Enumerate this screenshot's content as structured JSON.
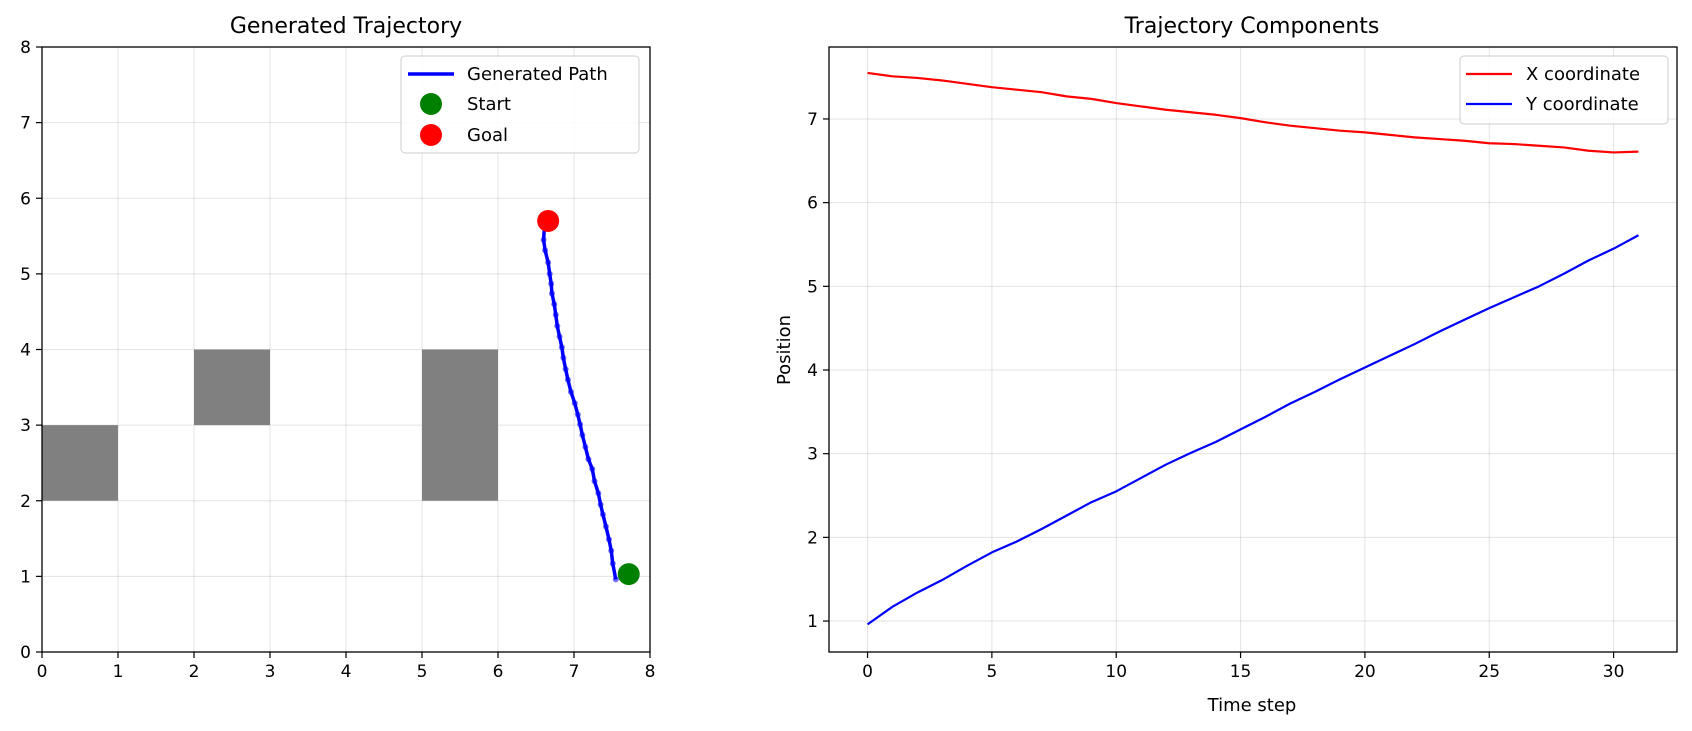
{
  "chart_data": [
    {
      "type": "scatter",
      "title": "Generated Trajectory",
      "xlabel": "",
      "ylabel": "",
      "xlim": [
        0,
        8
      ],
      "ylim": [
        0,
        8
      ],
      "xticks": [
        0,
        1,
        2,
        3,
        4,
        5,
        6,
        7,
        8
      ],
      "yticks": [
        0,
        1,
        2,
        3,
        4,
        5,
        6,
        7,
        8
      ],
      "grid": true,
      "legend_position": "top-right",
      "obstacles": [
        {
          "x": 0,
          "y": 2,
          "w": 1,
          "h": 1
        },
        {
          "x": 2,
          "y": 3,
          "w": 1,
          "h": 1
        },
        {
          "x": 5,
          "y": 2,
          "w": 1,
          "h": 2
        }
      ],
      "series": [
        {
          "name": "Generated Path",
          "color": "#0000ff",
          "points": [
            [
              7.55,
              0.96
            ],
            [
              7.51,
              1.17
            ],
            [
              7.49,
              1.34
            ],
            [
              7.46,
              1.49
            ],
            [
              7.42,
              1.66
            ],
            [
              7.38,
              1.82
            ],
            [
              7.35,
              1.95
            ],
            [
              7.32,
              2.1
            ],
            [
              7.27,
              2.26
            ],
            [
              7.24,
              2.42
            ],
            [
              7.19,
              2.55
            ],
            [
              7.15,
              2.71
            ],
            [
              7.11,
              2.87
            ],
            [
              7.08,
              3.01
            ],
            [
              7.05,
              3.14
            ],
            [
              7.01,
              3.29
            ],
            [
              6.96,
              3.44
            ],
            [
              6.92,
              3.6
            ],
            [
              6.89,
              3.74
            ],
            [
              6.86,
              3.89
            ],
            [
              6.84,
              4.03
            ],
            [
              6.81,
              4.17
            ],
            [
              6.78,
              4.31
            ],
            [
              6.76,
              4.46
            ],
            [
              6.74,
              4.6
            ],
            [
              6.71,
              4.74
            ],
            [
              6.7,
              4.87
            ],
            [
              6.68,
              5.0
            ],
            [
              6.66,
              5.15
            ],
            [
              6.62,
              5.31
            ],
            [
              6.6,
              5.45
            ],
            [
              6.61,
              5.61
            ]
          ]
        },
        {
          "name": "Start",
          "color": "#008000",
          "points": [
            [
              7.72,
              1.03
            ]
          ]
        },
        {
          "name": "Goal",
          "color": "#ff0000",
          "points": [
            [
              6.66,
              5.7
            ]
          ]
        }
      ]
    },
    {
      "type": "line",
      "title": "Trajectory Components",
      "xlabel": "Time step",
      "ylabel": "Position",
      "xlim": [
        -1.55,
        32.55
      ],
      "ylim": [
        0.63,
        7.86
      ],
      "xticks": [
        0,
        5,
        10,
        15,
        20,
        25,
        30
      ],
      "yticks": [
        1,
        2,
        3,
        4,
        5,
        6,
        7
      ],
      "grid": true,
      "legend_position": "top-right",
      "x": [
        0,
        1,
        2,
        3,
        4,
        5,
        6,
        7,
        8,
        9,
        10,
        11,
        12,
        13,
        14,
        15,
        16,
        17,
        18,
        19,
        20,
        21,
        22,
        23,
        24,
        25,
        26,
        27,
        28,
        29,
        30,
        31
      ],
      "series": [
        {
          "name": "X coordinate",
          "color": "#ff0000",
          "values": [
            7.55,
            7.51,
            7.49,
            7.46,
            7.42,
            7.38,
            7.35,
            7.32,
            7.27,
            7.24,
            7.19,
            7.15,
            7.11,
            7.08,
            7.05,
            7.01,
            6.96,
            6.92,
            6.89,
            6.86,
            6.84,
            6.81,
            6.78,
            6.76,
            6.74,
            6.71,
            6.7,
            6.68,
            6.66,
            6.62,
            6.6,
            6.61
          ]
        },
        {
          "name": "Y coordinate",
          "color": "#0000ff",
          "values": [
            0.96,
            1.17,
            1.34,
            1.49,
            1.66,
            1.82,
            1.95,
            2.1,
            2.26,
            2.42,
            2.55,
            2.71,
            2.87,
            3.01,
            3.14,
            3.29,
            3.44,
            3.6,
            3.74,
            3.89,
            4.03,
            4.17,
            4.31,
            4.46,
            4.6,
            4.74,
            4.87,
            5.0,
            5.15,
            5.31,
            5.45,
            5.61
          ]
        }
      ]
    }
  ]
}
